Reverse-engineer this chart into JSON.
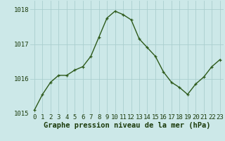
{
  "x": [
    0,
    1,
    2,
    3,
    4,
    5,
    6,
    7,
    8,
    9,
    10,
    11,
    12,
    13,
    14,
    15,
    16,
    17,
    18,
    19,
    20,
    21,
    22,
    23
  ],
  "y": [
    1015.1,
    1015.55,
    1015.9,
    1016.1,
    1016.1,
    1016.25,
    1016.35,
    1016.65,
    1017.2,
    1017.75,
    1017.95,
    1017.85,
    1017.7,
    1017.15,
    1016.9,
    1016.65,
    1016.2,
    1015.9,
    1015.75,
    1015.55,
    1015.85,
    1016.05,
    1016.35,
    1016.55
  ],
  "line_color": "#2d5a1b",
  "marker": "+",
  "bg_color": "#cce8e8",
  "grid_color": "#aacece",
  "xlabel": "Graphe pression niveau de la mer (hPa)",
  "ylim": [
    1015.0,
    1018.25
  ],
  "yticks": [
    1015,
    1016,
    1017,
    1018
  ],
  "xticks": [
    0,
    1,
    2,
    3,
    4,
    5,
    6,
    7,
    8,
    9,
    10,
    11,
    12,
    13,
    14,
    15,
    16,
    17,
    18,
    19,
    20,
    21,
    22,
    23
  ],
  "title_color": "#1a3a0a",
  "xlabel_fontsize": 7.5,
  "tick_fontsize": 6.5,
  "tick_color": "#1a3a0a",
  "line_width": 1.0,
  "marker_size": 3.5
}
